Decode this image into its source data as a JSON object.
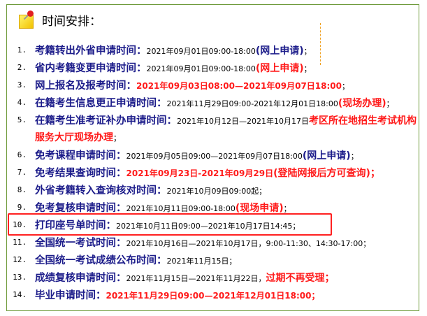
{
  "title": "时间安排：",
  "colors": {
    "label": "#1c1c8a",
    "highlight": "#ff2020",
    "frame": "#6e9a3a",
    "red": "#ff1a1a"
  },
  "items": [
    {
      "num": "1.",
      "segments": [
        {
          "t": "考籍转出外省申请时间：",
          "s": "label"
        },
        {
          "t": "2021年09月01日09:00-18:00",
          "s": "plain"
        },
        {
          "t": "(网上申请)",
          "s": "blue"
        },
        {
          "t": "；",
          "s": "plain"
        }
      ]
    },
    {
      "num": "2.",
      "segments": [
        {
          "t": "省内考籍变更申请时间：",
          "s": "label"
        },
        {
          "t": "2021年09月01日09:00-18:00",
          "s": "plain"
        },
        {
          "t": "(网上申请)",
          "s": "redbig"
        },
        {
          "t": "；",
          "s": "plain"
        }
      ]
    },
    {
      "num": "3.",
      "segments": [
        {
          "t": "网上报名及报考时间：",
          "s": "label"
        },
        {
          "t": "2021年09月03日08:00—2021年09月07日18:00",
          "s": "red"
        },
        {
          "t": "；",
          "s": "plain"
        }
      ]
    },
    {
      "num": "4.",
      "segments": [
        {
          "t": "在籍考生信息更正申请时间：",
          "s": "label"
        },
        {
          "t": "2021年11月29日09:00-2021年12月01日18:00",
          "s": "plain"
        },
        {
          "t": "(现场办理)",
          "s": "redbig"
        },
        {
          "t": "；",
          "s": "plain"
        }
      ]
    },
    {
      "num": "5.",
      "segments": [
        {
          "t": "在籍考生准考证补办申请时间：",
          "s": "label"
        },
        {
          "t": "2021年10月12日—2021年10月17日",
          "s": "plain"
        },
        {
          "t": "考区所在地招生考试机构",
          "s": "redbig"
        }
      ]
    },
    {
      "num": "",
      "segments": [
        {
          "t": "服务大厅现场办理",
          "s": "redbig"
        },
        {
          "t": "；",
          "s": "plain"
        }
      ]
    },
    {
      "num": "6.",
      "segments": [
        {
          "t": "免考课程申请时间：",
          "s": "label"
        },
        {
          "t": "2021年09月05日09:00—2021年09月07日18:00",
          "s": "plain"
        },
        {
          "t": "(网上申请)",
          "s": "blue"
        },
        {
          "t": "；",
          "s": "plain"
        }
      ]
    },
    {
      "num": "7.",
      "segments": [
        {
          "t": "免考结果查询时间：",
          "s": "label"
        },
        {
          "t": "2021年09月23日-2021年09月29日",
          "s": "red"
        },
        {
          "t": "(登陆网报后方可查询)；",
          "s": "redbig"
        }
      ]
    },
    {
      "num": "8.",
      "segments": [
        {
          "t": "外省考籍转入查询核对时间：",
          "s": "label"
        },
        {
          "t": "2021年10月09日09:00起；",
          "s": "plain"
        }
      ]
    },
    {
      "num": "9.",
      "segments": [
        {
          "t": "免考复核申请时间：",
          "s": "label"
        },
        {
          "t": "2021年10月11日09:00-18:00",
          "s": "plain"
        },
        {
          "t": "(现场申请)",
          "s": "redbig"
        },
        {
          "t": "；",
          "s": "plain"
        }
      ]
    },
    {
      "num": "10.",
      "segments": [
        {
          "t": "打印座号单时间：",
          "s": "label"
        },
        {
          "t": "2021年10月11日09:00—2021年10月17日14:45；",
          "s": "plain"
        }
      ]
    },
    {
      "num": "11.",
      "segments": [
        {
          "t": "全国统一考试时间：",
          "s": "label"
        },
        {
          "t": "2021年10月16日—2021年10月17日，9:00-11:30、14:30-17:00；",
          "s": "plain"
        }
      ]
    },
    {
      "num": "12.",
      "segments": [
        {
          "t": "全国统一考试成绩公布时间：",
          "s": "label"
        },
        {
          "t": "2021年11月15日；",
          "s": "plain"
        }
      ]
    },
    {
      "num": "13.",
      "segments": [
        {
          "t": "成绩复核申请时间：",
          "s": "label"
        },
        {
          "t": "2021年11月15日—2021年11月22日，",
          "s": "plain"
        },
        {
          "t": "过期不再受理；",
          "s": "redbig"
        }
      ]
    },
    {
      "num": "14.",
      "segments": [
        {
          "t": "毕业申请时间：",
          "s": "label"
        },
        {
          "t": "2021年11月29日09:00—2021年12月01日18:00；",
          "s": "red"
        }
      ]
    }
  ]
}
